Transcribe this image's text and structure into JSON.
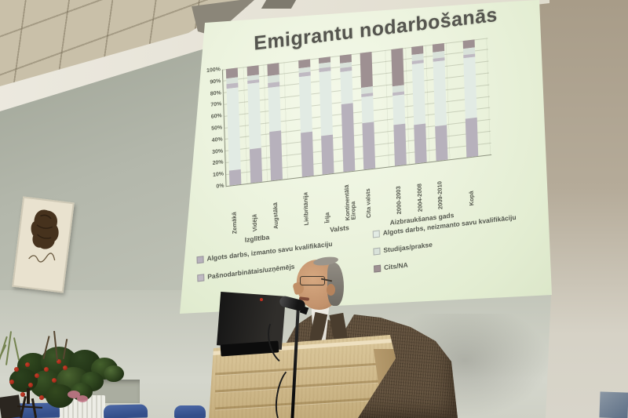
{
  "slide": {
    "title": "Emigrantu nodarbošanās",
    "legend": [
      {
        "label": "Algots darbs, izmanto savu kvalifikāciju",
        "color": "#b7b1bc",
        "column": "left"
      },
      {
        "label": "Algots darbs, neizmanto savu kvalifikāciju",
        "color": "#e2ebe4",
        "column": "right"
      },
      {
        "label": "Pašnodarbinātais/uzņēmējs",
        "color": "#bfb9c2",
        "column": "left"
      },
      {
        "label": "Studijas/prakse",
        "color": "#d9e2da",
        "column": "right"
      },
      {
        "label": "Cits/NA",
        "color": "#9e9092",
        "column": "right"
      }
    ]
  },
  "chart_data": {
    "type": "bar",
    "subtype": "stacked-100-percent",
    "title": "Emigrantu nodarbošanās",
    "categories": [
      "Zemākā",
      "Vidējā",
      "Augstākā",
      "Lielbritānija",
      "Īrija",
      "Kontinentālā Eiropa",
      "Cita valsts",
      "2000-2003",
      "2004-2008",
      "2009-2010",
      "Kopā"
    ],
    "groups": [
      {
        "label": "Izglītība",
        "count": 3
      },
      {
        "label": "Valsts",
        "count": 4
      },
      {
        "label": "Aizbraukšanas gads",
        "count": 3
      },
      {
        "label": "",
        "count": 1
      }
    ],
    "yticks": [
      "0%",
      "10%",
      "20%",
      "30%",
      "40%",
      "50%",
      "60%",
      "70%",
      "80%",
      "90%",
      "100%"
    ],
    "ylim": [
      0,
      100
    ],
    "grid": true,
    "legend_position": "bottom",
    "series": [
      {
        "name": "Algots darbs, izmanto savu kvalifikāciju",
        "color": "#b7b1bc",
        "values": [
          13,
          29,
          42,
          38,
          33,
          58,
          40,
          35,
          33,
          30,
          33
        ]
      },
      {
        "name": "Algots darbs, neizmanto savu kvalifikāciju",
        "color": "#e2ebe4",
        "values": [
          70,
          56,
          38,
          48,
          55,
          28,
          22,
          25,
          52,
          55,
          52
        ]
      },
      {
        "name": "Pašnodarbinātais/uzņēmējs",
        "color": "#bfb9c2",
        "values": [
          4,
          3,
          4,
          3,
          3,
          3,
          3,
          3,
          3,
          3,
          3
        ]
      },
      {
        "name": "Studijas/prakse",
        "color": "#d9e2da",
        "values": [
          5,
          4,
          6,
          4,
          4,
          4,
          5,
          5,
          5,
          5,
          5
        ]
      },
      {
        "name": "Cits/NA",
        "color": "#9e9092",
        "values": [
          8,
          8,
          10,
          7,
          5,
          7,
          30,
          32,
          7,
          7,
          7
        ]
      }
    ]
  },
  "colors": {
    "screen_glow": "#ecf3de",
    "wall_left": "#b3b7ab",
    "wall_right": "#a89c88",
    "wall_lower": "#c9ccc1",
    "ceiling_tile": "#c9c0a9",
    "ceiling_beam": "#ece9df",
    "podium_wood": "#d0ba8c",
    "chair_blue": "#3f5c9e",
    "jacket_brown": "#5a4a38",
    "flower_red": "#a62616",
    "foliage_green": "#3c5628",
    "laptop_black": "#141414",
    "frame_paper": "#e9e2cf"
  }
}
